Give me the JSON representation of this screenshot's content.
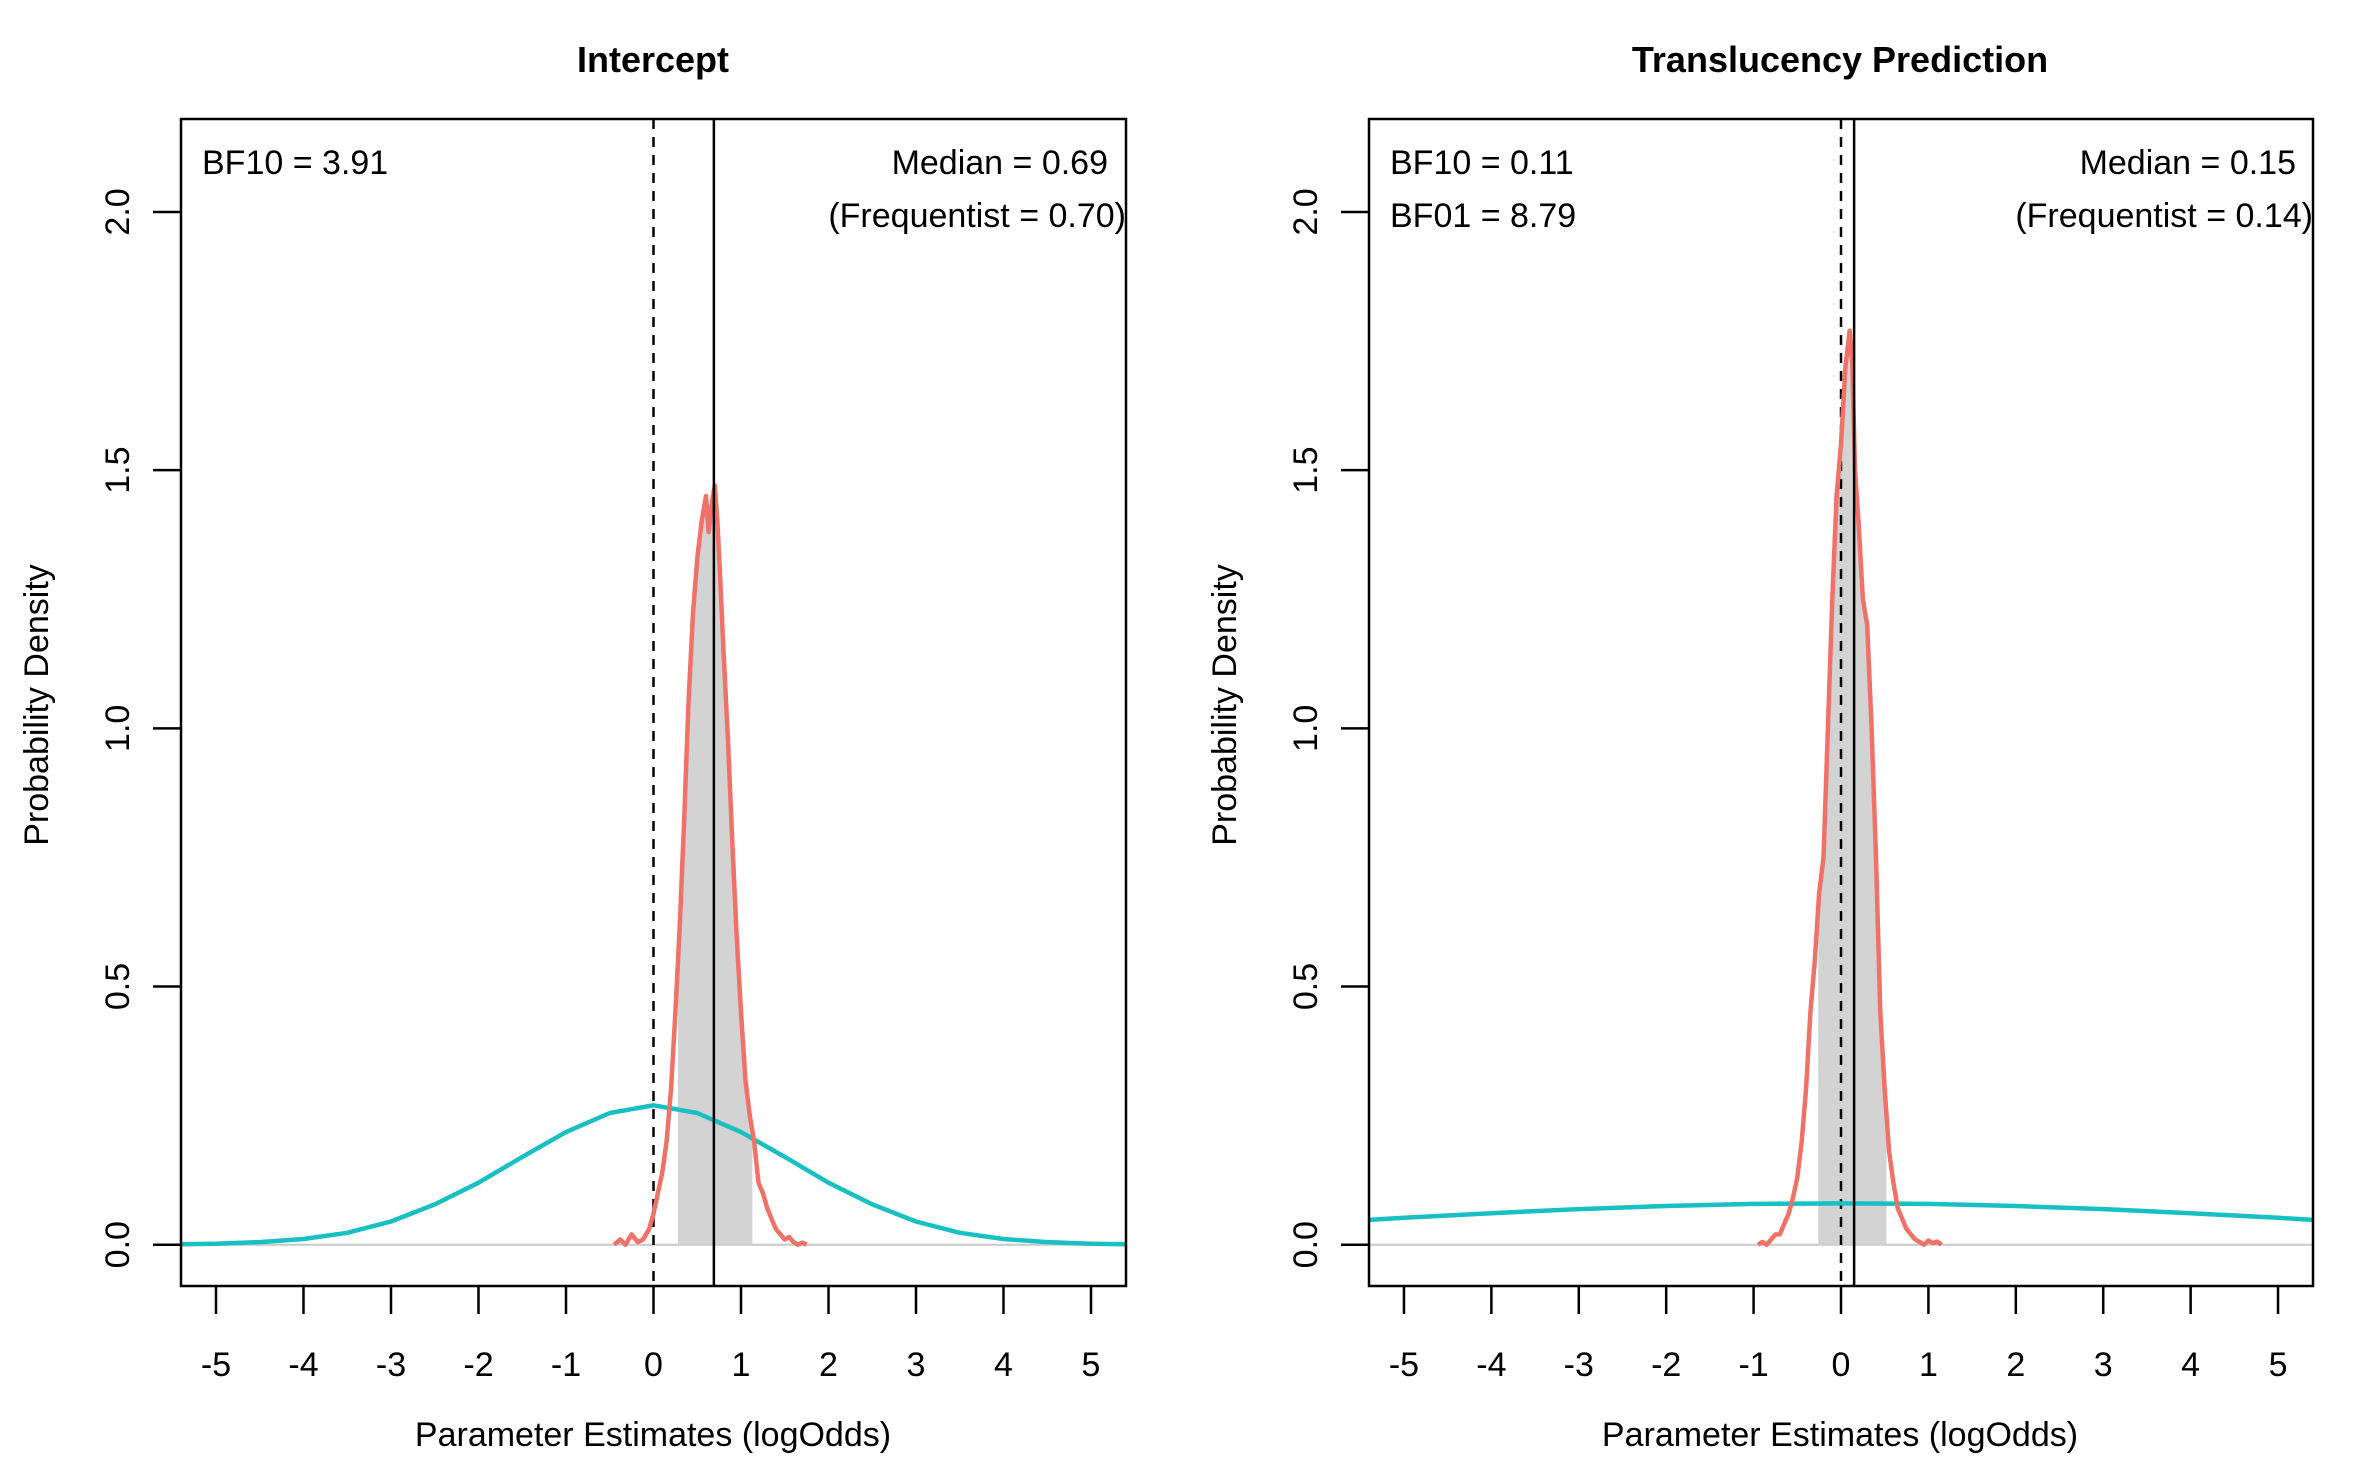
{
  "chart_data": [
    {
      "type": "line",
      "title": "Intercept",
      "xlabel": "Parameter Estimates (logOdds)",
      "ylabel": "Probability Density",
      "xlim": [
        -5.4,
        5.4
      ],
      "ylim": [
        -0.08,
        2.18
      ],
      "xticks": [
        -5,
        -4,
        -3,
        -2,
        -1,
        0,
        1,
        2,
        3,
        4,
        5
      ],
      "yticks": [
        0.0,
        0.5,
        1.0,
        1.5,
        2.0
      ],
      "ytick_labels": [
        "0.0",
        "0.5",
        "1.0",
        "1.5",
        "2.0"
      ],
      "grid": false,
      "annotations_left": [
        "BF10 = 3.91"
      ],
      "annotations_right": [
        "Median = 0.69",
        "(Frequentist = 0.70)"
      ],
      "median_line": 0.69,
      "null_line": 0,
      "credible_interval": [
        0.28,
        1.13
      ],
      "series": [
        {
          "color": "#18BFC3",
          "x": [
            -5.4,
            -5.0,
            -4.5,
            -4.0,
            -3.5,
            -3.0,
            -2.5,
            -2.0,
            -1.5,
            -1.0,
            -0.5,
            0.0,
            0.5,
            1.0,
            1.5,
            2.0,
            2.5,
            3.0,
            3.5,
            4.0,
            4.5,
            5.0,
            5.4
          ],
          "y": [
            0.001,
            0.002,
            0.005,
            0.011,
            0.023,
            0.045,
            0.078,
            0.12,
            0.17,
            0.218,
            0.255,
            0.27,
            0.255,
            0.218,
            0.17,
            0.12,
            0.078,
            0.045,
            0.023,
            0.011,
            0.005,
            0.002,
            0.001
          ]
        },
        {
          "color": "#F07167",
          "x": [
            -0.45,
            -0.38,
            -0.32,
            -0.25,
            -0.18,
            -0.12,
            -0.05,
            0.0,
            0.05,
            0.1,
            0.15,
            0.2,
            0.25,
            0.3,
            0.35,
            0.4,
            0.45,
            0.5,
            0.55,
            0.6,
            0.63,
            0.67,
            0.7,
            0.73,
            0.76,
            0.8,
            0.85,
            0.9,
            0.95,
            1.0,
            1.05,
            1.1,
            1.15,
            1.2,
            1.25,
            1.3,
            1.35,
            1.4,
            1.45,
            1.5,
            1.55,
            1.6,
            1.65,
            1.7,
            1.75
          ],
          "y": [
            0.0,
            0.01,
            0.0,
            0.02,
            0.005,
            0.01,
            0.03,
            0.06,
            0.1,
            0.14,
            0.2,
            0.3,
            0.45,
            0.62,
            0.82,
            1.05,
            1.22,
            1.33,
            1.4,
            1.45,
            1.38,
            1.44,
            1.47,
            1.4,
            1.3,
            1.15,
            0.98,
            0.78,
            0.6,
            0.45,
            0.32,
            0.25,
            0.2,
            0.12,
            0.1,
            0.07,
            0.05,
            0.03,
            0.02,
            0.01,
            0.015,
            0.005,
            0.0,
            0.004,
            0.0
          ]
        }
      ]
    },
    {
      "type": "line",
      "title": "Translucency Prediction",
      "xlabel": "Parameter Estimates (logOdds)",
      "ylabel": "Probability Density",
      "xlim": [
        -5.4,
        5.4
      ],
      "ylim": [
        -0.08,
        2.18
      ],
      "xticks": [
        -5,
        -4,
        -3,
        -2,
        -1,
        0,
        1,
        2,
        3,
        4,
        5
      ],
      "yticks": [
        0.0,
        0.5,
        1.0,
        1.5,
        2.0
      ],
      "ytick_labels": [
        "0.0",
        "0.5",
        "1.0",
        "1.5",
        "2.0"
      ],
      "grid": false,
      "annotations_left": [
        "BF10 = 0.11",
        "BF01 = 8.79"
      ],
      "annotations_right": [
        "Median = 0.15",
        "(Frequentist = 0.14)"
      ],
      "median_line": 0.15,
      "null_line": 0,
      "credible_interval": [
        -0.26,
        0.52
      ],
      "series": [
        {
          "color": "#18BFC3",
          "x": [
            -5.4,
            -5.0,
            -4.0,
            -3.0,
            -2.0,
            -1.0,
            0.0,
            1.0,
            2.0,
            3.0,
            4.0,
            5.0,
            5.4
          ],
          "y": [
            0.048,
            0.052,
            0.061,
            0.069,
            0.075,
            0.079,
            0.08,
            0.079,
            0.075,
            0.069,
            0.061,
            0.052,
            0.048
          ]
        },
        {
          "color": "#F07167",
          "x": [
            -0.95,
            -0.9,
            -0.85,
            -0.8,
            -0.75,
            -0.7,
            -0.65,
            -0.6,
            -0.55,
            -0.5,
            -0.45,
            -0.4,
            -0.35,
            -0.3,
            -0.25,
            -0.2,
            -0.15,
            -0.1,
            -0.05,
            0.0,
            0.05,
            0.1,
            0.13,
            0.16,
            0.2,
            0.25,
            0.3,
            0.35,
            0.4,
            0.45,
            0.5,
            0.55,
            0.6,
            0.65,
            0.7,
            0.75,
            0.8,
            0.85,
            0.9,
            0.95,
            1.0,
            1.05,
            1.1,
            1.15
          ],
          "y": [
            0.0,
            0.005,
            0.0,
            0.01,
            0.02,
            0.02,
            0.04,
            0.06,
            0.09,
            0.13,
            0.2,
            0.3,
            0.45,
            0.55,
            0.68,
            0.75,
            1.0,
            1.25,
            1.45,
            1.55,
            1.7,
            1.77,
            1.7,
            1.5,
            1.4,
            1.25,
            1.2,
            1.0,
            0.75,
            0.45,
            0.3,
            0.18,
            0.12,
            0.07,
            0.05,
            0.03,
            0.02,
            0.01,
            0.005,
            0.0,
            0.008,
            0.003,
            0.006,
            0.0
          ]
        }
      ]
    }
  ]
}
